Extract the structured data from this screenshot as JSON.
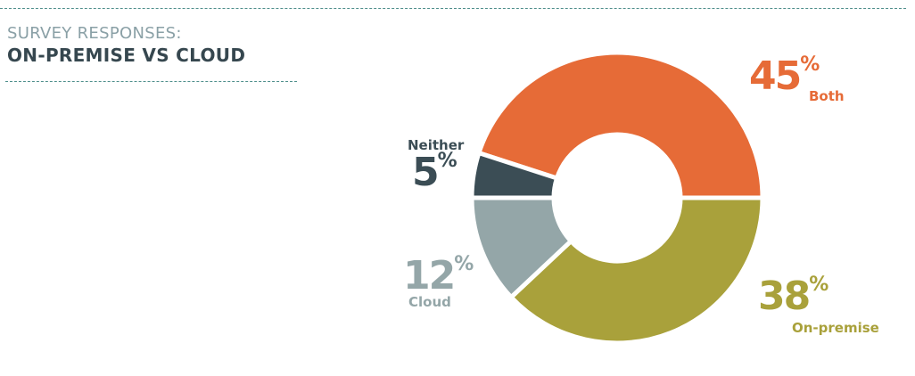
{
  "header": {
    "subtitle": "SURVEY RESPONSES:",
    "title": "ON-PREMISE VS CLOUD"
  },
  "chart_data": {
    "type": "pie",
    "donut": true,
    "title": "ON-PREMISE VS CLOUD",
    "subtitle": "SURVEY RESPONSES:",
    "categories": [
      "Both",
      "On-premise",
      "Cloud",
      "Neither"
    ],
    "values": [
      45,
      38,
      12,
      5
    ],
    "unit": "%",
    "colors": [
      "#e66b37",
      "#a9a13b",
      "#94a6a8",
      "#3b4d55"
    ],
    "labels": [
      {
        "category": "Both",
        "value": "45",
        "unit": "%"
      },
      {
        "category": "On-premise",
        "value": "38",
        "unit": "%"
      },
      {
        "category": "Cloud",
        "value": "12",
        "unit": "%"
      },
      {
        "category": "Neither",
        "value": "5",
        "unit": "%"
      }
    ]
  }
}
